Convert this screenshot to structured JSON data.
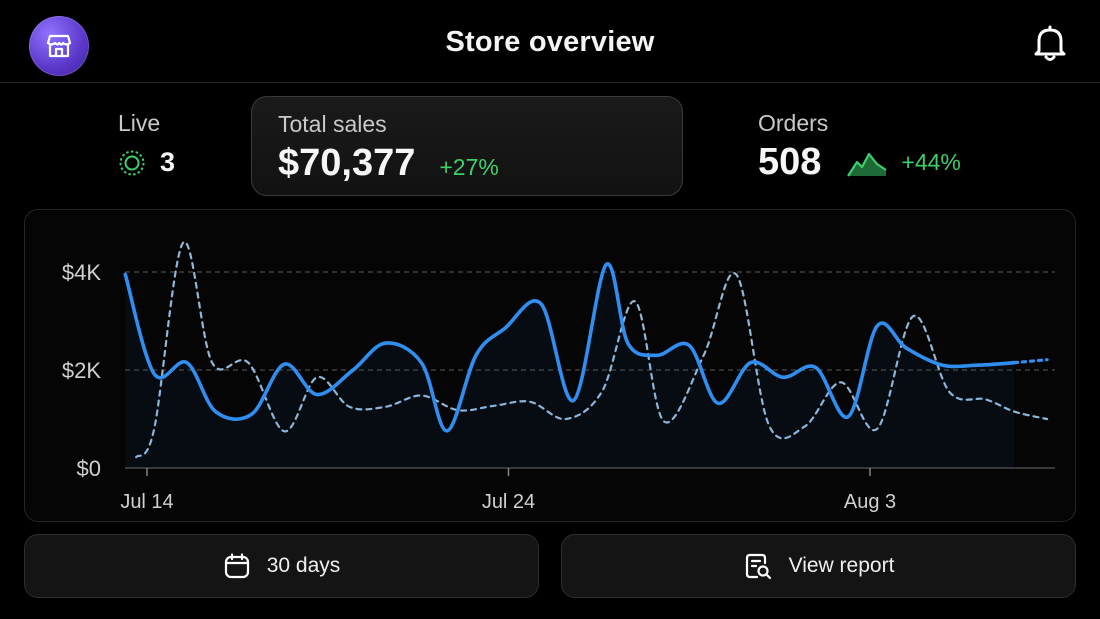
{
  "header": {
    "title": "Store overview",
    "store_icon": "store-icon",
    "bell_icon": "bell-icon"
  },
  "stats": {
    "live": {
      "label": "Live",
      "value": "3",
      "icon": "live-pulse-icon"
    },
    "total_sales": {
      "label": "Total sales",
      "value": "$70,377",
      "delta": "+27%"
    },
    "orders": {
      "label": "Orders",
      "value": "508",
      "delta": "+44%",
      "icon": "mountain-trend-icon"
    }
  },
  "colors": {
    "accent": "#2f8ef0",
    "comparison": "#8fb8d8",
    "positive": "#3ecf6a",
    "purple": "#6a48db"
  },
  "chart_data": {
    "type": "line",
    "ylim": [
      0,
      4500
    ],
    "yticks": [
      {
        "value": 0,
        "label": "$0"
      },
      {
        "value": 2000,
        "label": "$2K"
      },
      {
        "value": 4000,
        "label": "$4K"
      }
    ],
    "xlim": [
      0,
      30.5
    ],
    "xticks": [
      {
        "value": 0,
        "label": "Jul 14"
      },
      {
        "value": 10,
        "label": "Jul 24"
      },
      {
        "value": 20,
        "label": "Aug 3"
      }
    ],
    "gridlines": [
      2000,
      4000
    ],
    "series": [
      {
        "style": "solid",
        "projected_from": 24,
        "points": [
          [
            -0.6,
            3950
          ],
          [
            0.2,
            1920
          ],
          [
            1.1,
            2150
          ],
          [
            1.9,
            1150
          ],
          [
            2.9,
            1100
          ],
          [
            3.8,
            2120
          ],
          [
            4.7,
            1500
          ],
          [
            5.7,
            2000
          ],
          [
            6.6,
            2550
          ],
          [
            7.6,
            2140
          ],
          [
            8.3,
            760
          ],
          [
            9.1,
            2300
          ],
          [
            9.9,
            2850
          ],
          [
            10.9,
            3350
          ],
          [
            11.8,
            1380
          ],
          [
            12.7,
            4150
          ],
          [
            13.3,
            2550
          ],
          [
            14.1,
            2300
          ],
          [
            15.0,
            2500
          ],
          [
            15.8,
            1320
          ],
          [
            16.7,
            2150
          ],
          [
            17.6,
            1850
          ],
          [
            18.5,
            2050
          ],
          [
            19.4,
            1050
          ],
          [
            20.2,
            2900
          ],
          [
            21.0,
            2450
          ],
          [
            22.0,
            2100
          ],
          [
            23.0,
            2100
          ],
          [
            24.0,
            2150
          ],
          [
            24.9,
            2210
          ]
        ]
      },
      {
        "style": "dashed",
        "points": [
          [
            -0.3,
            220
          ],
          [
            0.2,
            800
          ],
          [
            1.0,
            4600
          ],
          [
            1.8,
            2150
          ],
          [
            2.8,
            2150
          ],
          [
            3.8,
            750
          ],
          [
            4.7,
            1850
          ],
          [
            5.6,
            1250
          ],
          [
            6.6,
            1250
          ],
          [
            7.6,
            1480
          ],
          [
            8.6,
            1180
          ],
          [
            9.6,
            1270
          ],
          [
            10.6,
            1350
          ],
          [
            11.6,
            1000
          ],
          [
            12.6,
            1580
          ],
          [
            13.5,
            3400
          ],
          [
            14.3,
            950
          ],
          [
            15.4,
            2300
          ],
          [
            16.3,
            3950
          ],
          [
            17.2,
            880
          ],
          [
            18.2,
            850
          ],
          [
            19.2,
            1750
          ],
          [
            20.2,
            800
          ],
          [
            21.2,
            3100
          ],
          [
            22.2,
            1550
          ],
          [
            23.2,
            1400
          ],
          [
            24.0,
            1150
          ],
          [
            24.9,
            1000
          ]
        ]
      }
    ]
  },
  "controls": {
    "range_button": {
      "label": "30 days",
      "icon": "calendar-icon"
    },
    "report_button": {
      "label": "View report",
      "icon": "report-search-icon"
    }
  }
}
